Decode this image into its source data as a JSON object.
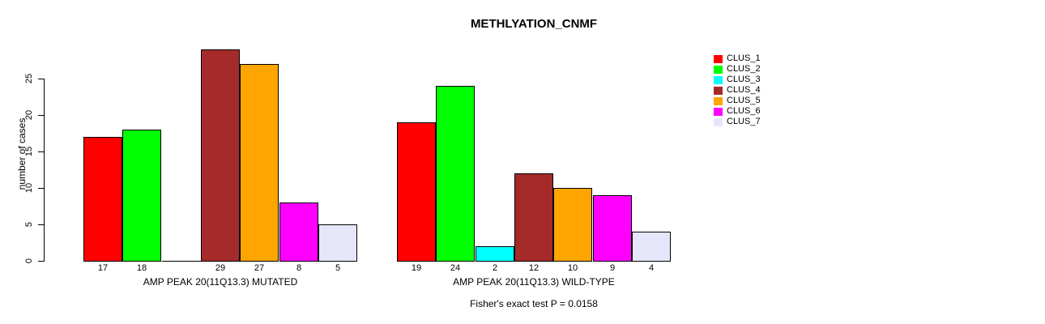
{
  "chart_data": {
    "type": "bar",
    "title": "METHLYATION_CNMF",
    "ylabel": "number of cases",
    "yticks": [
      0,
      5,
      10,
      15,
      20,
      25
    ],
    "ylim": [
      0,
      29
    ],
    "grid": false,
    "legend_position": "right",
    "clusters": [
      {
        "name": "CLUS_1",
        "color": "#FF0000"
      },
      {
        "name": "CLUS_2",
        "color": "#00FF00"
      },
      {
        "name": "CLUS_3",
        "color": "#00FFFF"
      },
      {
        "name": "CLUS_4",
        "color": "#A52A2A"
      },
      {
        "name": "CLUS_5",
        "color": "#FFA500"
      },
      {
        "name": "CLUS_6",
        "color": "#FF00FF"
      },
      {
        "name": "CLUS_7",
        "color": "#E6E6FA"
      }
    ],
    "groups": [
      {
        "label": "AMP PEAK 20(11Q13.3) MUTATED",
        "values": [
          17,
          18,
          0,
          29,
          27,
          8,
          5
        ],
        "bar_labels": [
          "17",
          "18",
          "",
          "29",
          "27",
          "8",
          "5"
        ]
      },
      {
        "label": "AMP PEAK 20(11Q13.3) WILD-TYPE",
        "values": [
          19,
          24,
          2,
          12,
          10,
          9,
          4
        ],
        "bar_labels": [
          "19",
          "24",
          "2",
          "12",
          "10",
          "9",
          "4"
        ]
      }
    ],
    "footnote": "Fisher's exact test P = 0.0158"
  }
}
